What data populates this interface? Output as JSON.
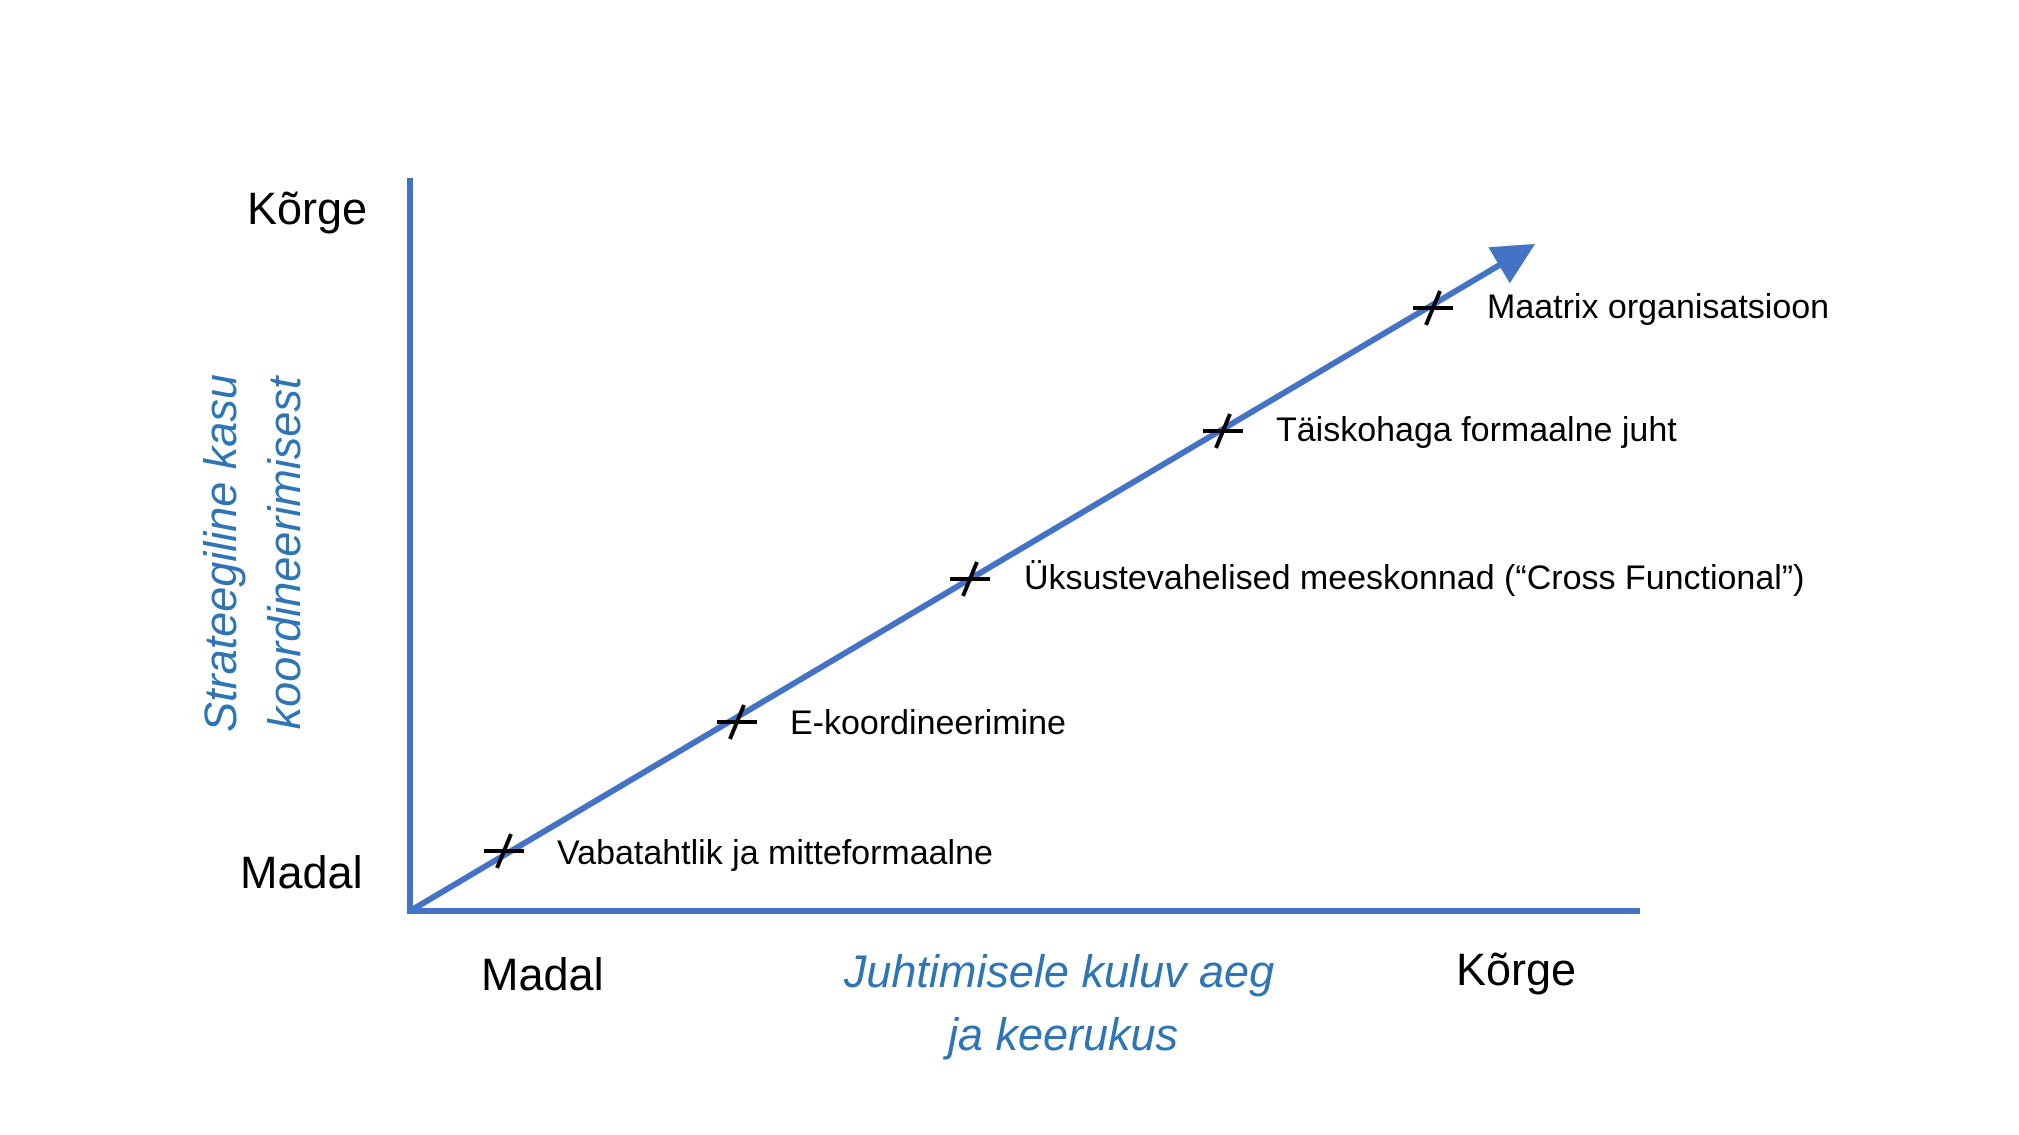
{
  "colors": {
    "axis": "#4472c4",
    "axis_title": "#2e75b6",
    "marker": "#000000",
    "text": "#000000"
  },
  "y_axis": {
    "high_label": "Kõrge",
    "low_label": "Madal",
    "title_line1": "Strateegiline kasu",
    "title_line2": "koordineerimisest"
  },
  "x_axis": {
    "low_label": "Madal",
    "high_label": "Kõrge",
    "title_line1": "Juhtimisele kuluv aeg",
    "title_line2": "ja keerukus"
  },
  "points": [
    {
      "label": "Vabatahtlik ja mitteformaalne"
    },
    {
      "label": "E-koordineerimine"
    },
    {
      "label": "Üksustevahelised meeskonnad (“Cross Functional”)"
    },
    {
      "label": "Täiskohaga formaalne juht"
    },
    {
      "label": "Maatrix organisatsioon"
    }
  ]
}
